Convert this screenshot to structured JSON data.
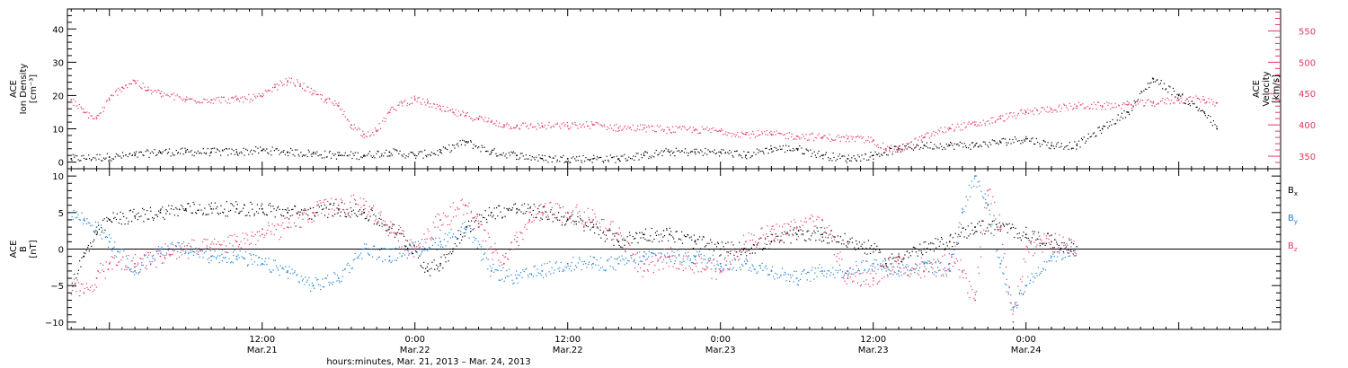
{
  "colors": {
    "axis": "#000000",
    "black": "#000000",
    "pink": "#e8355f",
    "blue": "#1a7fd6"
  },
  "chart_data": [
    {
      "type": "scatter",
      "panel": "top",
      "ylabel_lines": [
        "ACE",
        "Ion Density",
        "[cm⁻³]"
      ],
      "ylim": [
        -2,
        46
      ],
      "yticks": [
        0,
        10,
        20,
        30,
        40
      ],
      "ytick_labels": [
        "0",
        "10",
        "20",
        "30",
        "40"
      ],
      "y2label_lines": [
        "ACE",
        "Velocity",
        "[km/s]"
      ],
      "y2lim": [
        330,
        585
      ],
      "y2ticks": [
        350,
        400,
        450,
        500,
        550
      ],
      "y2tick_labels": [
        "350",
        "400",
        "450",
        "500",
        "550"
      ],
      "xlim": [
        -15.3,
        80
      ],
      "series": [
        {
          "color": "black",
          "axis": "left",
          "x": [
            -15,
            -12,
            -10,
            -8,
            -6,
            -4,
            -2,
            0,
            2,
            4,
            6,
            8,
            10,
            12,
            14,
            16,
            18,
            20,
            22,
            24,
            26,
            28,
            30,
            32,
            34,
            36,
            38,
            40,
            42,
            44,
            46,
            48,
            50,
            52,
            54,
            56,
            58,
            60,
            62,
            64,
            66,
            68,
            70,
            72,
            74,
            75
          ],
          "y": [
            1,
            1.5,
            2,
            3,
            3,
            3,
            3,
            3.5,
            3,
            2.5,
            2,
            2,
            3,
            2,
            3,
            6,
            3,
            2,
            1,
            1,
            1,
            1,
            2,
            3,
            3,
            3,
            2,
            4,
            4,
            2,
            1,
            2,
            4,
            5,
            5,
            5,
            6,
            7,
            5,
            5,
            10,
            15,
            25,
            20,
            15,
            10
          ],
          "spread": 1.2
        },
        {
          "color": "pink",
          "axis": "right",
          "x": [
            -15,
            -14,
            -13,
            -12,
            -11,
            -10,
            -9,
            -8,
            -6,
            -4,
            -2,
            0,
            1,
            2,
            3,
            4,
            5,
            6,
            7,
            8,
            9,
            10,
            11,
            12,
            13,
            14,
            15,
            16,
            17,
            18,
            19,
            20,
            22,
            24,
            26,
            28,
            30,
            32,
            34,
            36,
            38,
            40,
            42,
            44,
            46,
            48,
            49,
            50,
            52,
            54,
            56,
            58,
            60,
            62,
            64,
            66,
            68,
            70,
            72,
            74,
            75
          ],
          "y": [
            440,
            420,
            410,
            440,
            460,
            470,
            455,
            450,
            440,
            440,
            440,
            445,
            460,
            470,
            465,
            450,
            440,
            430,
            400,
            385,
            390,
            420,
            435,
            440,
            435,
            425,
            420,
            415,
            410,
            405,
            400,
            398,
            398,
            398,
            400,
            395,
            395,
            392,
            392,
            390,
            385,
            385,
            382,
            380,
            378,
            375,
            362,
            360,
            380,
            395,
            400,
            410,
            420,
            425,
            430,
            430,
            432,
            435,
            440,
            440,
            435
          ],
          "spread": 6
        }
      ]
    },
    {
      "type": "scatter",
      "panel": "bottom",
      "ylabel_lines": [
        "ACE",
        "B",
        "[nT]"
      ],
      "ylim": [
        -11,
        11
      ],
      "yticks": [
        -10,
        -5,
        0,
        5,
        10
      ],
      "ytick_labels": [
        "−10",
        "−5",
        "0",
        "5",
        "10"
      ],
      "zero_line": true,
      "xlim": [
        -15.3,
        80
      ],
      "x_tick_labels": [
        {
          "x": 0,
          "time": "12:00",
          "date": "Mar.21"
        },
        {
          "x": 12,
          "time": "0:00",
          "date": "Mar.22"
        },
        {
          "x": 24,
          "time": "12:00",
          "date": "Mar.22"
        },
        {
          "x": 36,
          "time": "0:00",
          "date": "Mar.23"
        },
        {
          "x": 48,
          "time": "12:00",
          "date": "Mar.23"
        },
        {
          "x": 60,
          "time": "0:00",
          "date": "Mar.24"
        }
      ],
      "xlabel": "hours:minutes, Mar. 21, 2013 – Mar. 24, 2013",
      "legend": [
        {
          "base": "B",
          "sub": "x",
          "color": "black"
        },
        {
          "base": "B",
          "sub": "y",
          "color": "blue"
        },
        {
          "base": "B",
          "sub": "z",
          "color": "pink"
        }
      ],
      "series": [
        {
          "name": "Bx",
          "color": "black",
          "x": [
            -15,
            -14,
            -13,
            -12,
            -10,
            -8,
            -6,
            -4,
            -2,
            0,
            2,
            4,
            6,
            8,
            10,
            12,
            13,
            14,
            15,
            16,
            18,
            20,
            22,
            24,
            26,
            28,
            30,
            32,
            34,
            36,
            38,
            40,
            42,
            44,
            46,
            48,
            49,
            50,
            52,
            54,
            56,
            58,
            60,
            62,
            64
          ],
          "y": [
            -5,
            -1,
            2,
            4,
            4.5,
            5,
            5.5,
            5.5,
            5.5,
            5.5,
            5,
            5,
            5.5,
            5,
            3,
            0,
            -3,
            -2,
            0,
            3,
            5,
            5.5,
            5,
            4,
            3,
            1,
            2,
            2,
            1,
            0,
            0,
            1,
            2,
            2,
            1,
            0,
            -2,
            -1,
            0,
            1,
            3,
            3,
            2,
            1,
            0
          ],
          "spread": 1.0
        },
        {
          "name": "By",
          "color": "blue",
          "x": [
            -15,
            -14,
            -13,
            -12,
            -10,
            -8,
            -6,
            -4,
            -2,
            0,
            2,
            4,
            6,
            8,
            10,
            12,
            14,
            16,
            18,
            20,
            22,
            24,
            26,
            28,
            30,
            32,
            34,
            36,
            38,
            40,
            42,
            44,
            46,
            48,
            50,
            52,
            54,
            55,
            56,
            57,
            58,
            59,
            60,
            62,
            64
          ],
          "y": [
            5,
            4,
            3,
            1,
            -3,
            0,
            0,
            -1,
            -1,
            -2,
            -3,
            -5,
            -4,
            0,
            -1,
            0,
            1,
            3,
            -3,
            -4,
            -3,
            -2,
            -2,
            -2,
            -1,
            -1,
            -1,
            -2,
            -2,
            -3,
            -4,
            -3,
            -3,
            -2,
            -3,
            -2,
            -3,
            5,
            10,
            6,
            -2,
            -8,
            -5,
            -1,
            0
          ],
          "spread": 1.0
        },
        {
          "name": "Bz",
          "color": "pink",
          "x": [
            -15,
            -14,
            -13,
            -12,
            -10,
            -8,
            -6,
            -4,
            -2,
            0,
            2,
            4,
            6,
            8,
            10,
            12,
            14,
            16,
            17,
            18,
            19,
            20,
            21,
            22,
            24,
            26,
            28,
            30,
            32,
            34,
            36,
            38,
            40,
            42,
            44,
            46,
            48,
            50,
            52,
            54,
            55,
            56,
            57,
            58,
            59,
            60,
            62,
            64
          ],
          "y": [
            -5,
            -6,
            -4,
            -2,
            -2,
            -1,
            0,
            0,
            1,
            2,
            3,
            5,
            6,
            6,
            3,
            0,
            4,
            6,
            3,
            0,
            -2,
            1,
            4,
            5,
            5,
            4,
            2,
            -3,
            -1,
            -2,
            -3,
            1,
            2,
            3,
            4,
            -4,
            -4,
            -2,
            -3,
            -2,
            -3,
            -7,
            8,
            3,
            -10,
            0,
            1,
            0
          ],
          "spread": 1.4
        }
      ]
    }
  ]
}
